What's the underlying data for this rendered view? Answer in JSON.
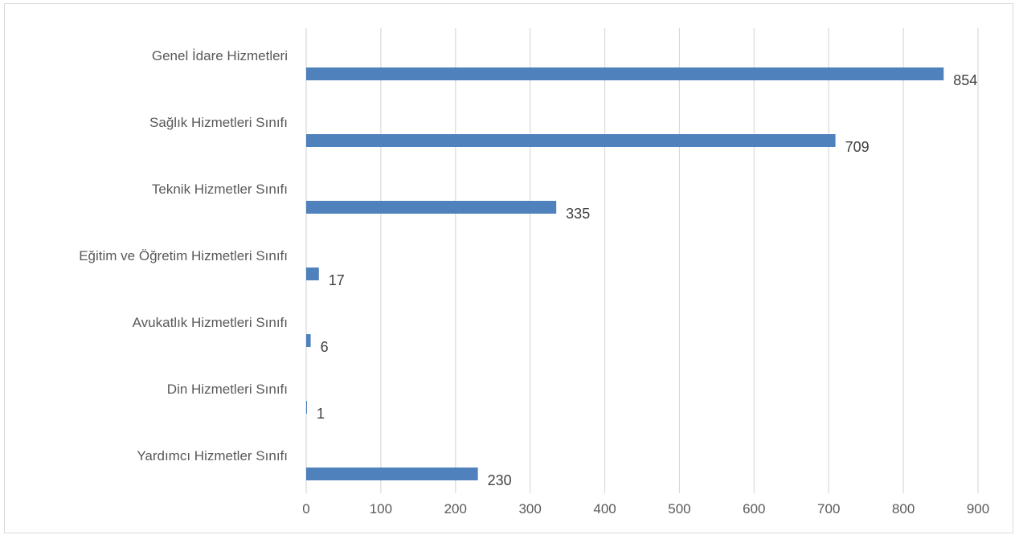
{
  "chart_data": {
    "type": "bar",
    "orientation": "horizontal",
    "categories": [
      "Genel İdare Hizmetleri",
      "Sağlık Hizmetleri Sınıfı",
      "Teknik Hizmetler Sınıfı",
      "Eğitim ve Öğretim Hizmetleri Sınıfı",
      "Avukatlık Hizmetleri Sınıfı",
      "Din Hizmetleri Sınıfı",
      "Yardımcı Hizmetler Sınıfı"
    ],
    "values": [
      854,
      709,
      335,
      17,
      6,
      1,
      230
    ],
    "xlim": [
      0,
      900
    ],
    "xticks": [
      0,
      100,
      200,
      300,
      400,
      500,
      600,
      700,
      800,
      900
    ],
    "grid": "vertical",
    "legend": "none",
    "data_labels": true,
    "bar_color": "#4f81bd",
    "grid_color": "#d9d9d9"
  }
}
